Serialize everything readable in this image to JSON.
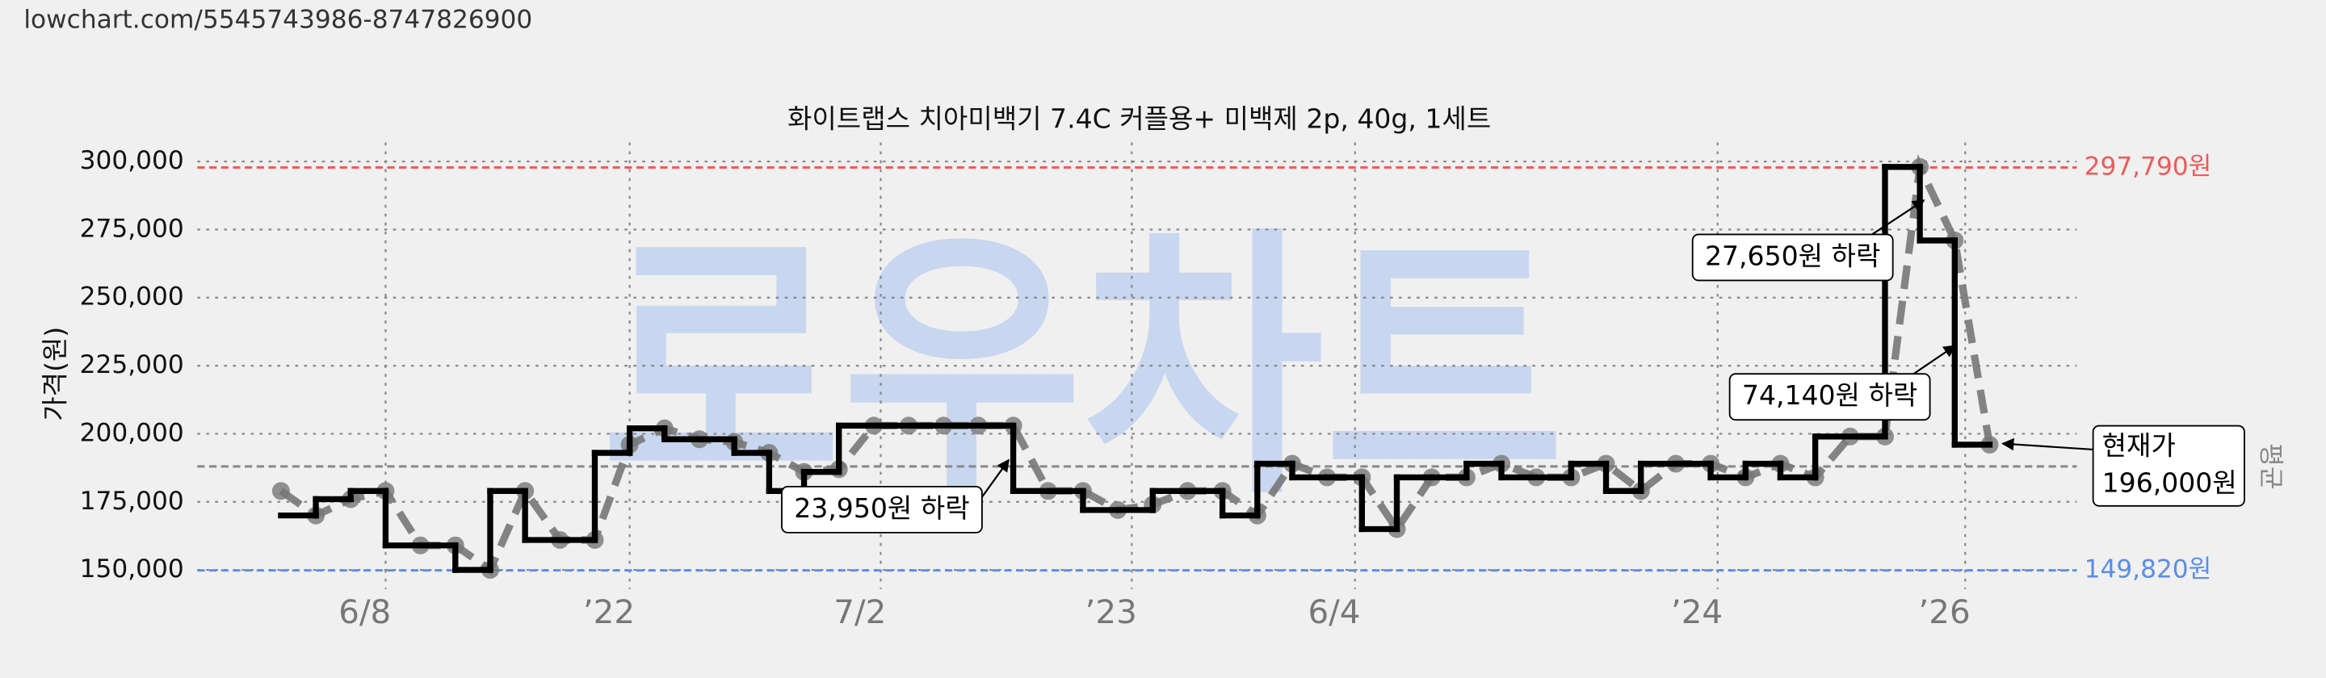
{
  "page": {
    "url": "lowchart.com/5545743986-8747826900"
  },
  "chart_data": {
    "type": "line",
    "title": "화이트랩스 치아미백기 7.4C 커플용+ 미백제 2p, 40g, 1세트",
    "y_label": "가격(원)",
    "watermark": "로우차트",
    "grid": true,
    "xlim": [
      -2.4,
      51.5
    ],
    "xticks": [
      {
        "value": 3,
        "label": "6/8"
      },
      {
        "value": 10,
        "label": "’22"
      },
      {
        "value": 17.2,
        "label": "7/2"
      },
      {
        "value": 24.4,
        "label": "’23"
      },
      {
        "value": 30.8,
        "label": "6/4"
      },
      {
        "value": 41.2,
        "label": "’24"
      },
      {
        "value": 48.3,
        "label": "’26"
      }
    ],
    "ylim": [
      143000,
      307000
    ],
    "yticks": [
      {
        "value": 150000,
        "label": "150,000"
      },
      {
        "value": 175000,
        "label": "175,000"
      },
      {
        "value": 200000,
        "label": "200,000"
      },
      {
        "value": 225000,
        "label": "225,000"
      },
      {
        "value": 250000,
        "label": "250,000"
      },
      {
        "value": 275000,
        "label": "275,000"
      },
      {
        "value": 300000,
        "label": "300,000"
      }
    ],
    "series": [
      {
        "color": "#000000",
        "step": true,
        "x": [
          0,
          1,
          2,
          3,
          5,
          6,
          7,
          9,
          10,
          11,
          13,
          14,
          15,
          16,
          21,
          23,
          25,
          27,
          28,
          29,
          31,
          32,
          34,
          35,
          37,
          38,
          39,
          41,
          42,
          43,
          44,
          46,
          47,
          48
        ],
        "values": [
          170000,
          176000,
          179000,
          159000,
          150000,
          179000,
          161000,
          193000,
          202000,
          198000,
          193000,
          179000,
          186000,
          203000,
          179000,
          172000,
          179000,
          170000,
          189000,
          184000,
          165000,
          184000,
          189000,
          184000,
          189000,
          179000,
          189000,
          184000,
          189000,
          184000,
          199000,
          298000,
          271000,
          196000
        ]
      },
      {
        "color": "#777777",
        "step": false,
        "x": [
          0,
          1,
          2,
          3,
          4,
          5,
          6,
          7,
          8,
          9,
          10,
          11,
          12,
          13,
          14,
          15,
          16,
          17,
          18,
          19,
          20,
          21,
          22,
          23,
          24,
          25,
          26,
          27,
          28,
          29,
          30,
          31,
          32,
          33,
          34,
          35,
          36,
          37,
          38,
          39,
          40,
          41,
          42,
          43,
          44,
          45,
          46,
          47,
          48,
          49
        ],
        "values": [
          179000,
          170000,
          176000,
          179000,
          159000,
          159000,
          150000,
          179000,
          161000,
          161000,
          196000,
          202000,
          198000,
          197000,
          193000,
          186000,
          187000,
          203000,
          203000,
          203000,
          203000,
          203000,
          179000,
          179000,
          172000,
          174000,
          179000,
          179000,
          170000,
          189000,
          184000,
          184000,
          165000,
          184000,
          184000,
          189000,
          184000,
          184000,
          189000,
          179000,
          189000,
          189000,
          184000,
          189000,
          184000,
          199000,
          199000,
          298000,
          271000,
          196000
        ]
      }
    ],
    "reference_lines": [
      {
        "value": 297790,
        "label": "297,790원",
        "color": "#f05a5a"
      },
      {
        "value": 149820,
        "label": "149,820원",
        "color": "#5b8de8"
      },
      {
        "value": 188000,
        "label": "평균",
        "color": "#888888"
      }
    ],
    "annotations": [
      {
        "lines": [
          "23,950원 하락"
        ]
      },
      {
        "lines": [
          "27,650원 하락"
        ]
      },
      {
        "lines": [
          "74,140원 하락"
        ]
      },
      {
        "lines": [
          "현재가",
          "196,000원"
        ]
      }
    ]
  }
}
